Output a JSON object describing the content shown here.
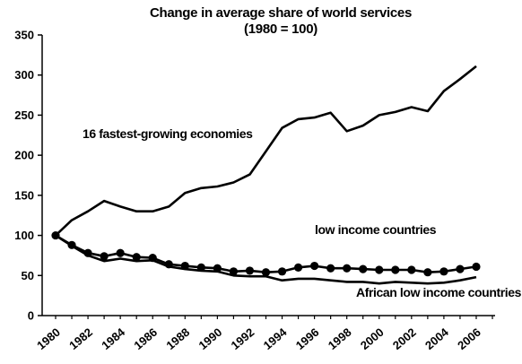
{
  "chart_data": {
    "type": "line",
    "title": "Change in average share of world services",
    "subtitle": "(1980 = 100)",
    "xlabel": "",
    "ylabel": "",
    "x_ticks": [
      "1980",
      "1982",
      "1984",
      "1986",
      "1988",
      "1990",
      "1992",
      "1994",
      "1996",
      "1998",
      "2000",
      "2002",
      "2004",
      "2006"
    ],
    "y_ticks": [
      0,
      50,
      100,
      150,
      200,
      250,
      300,
      350
    ],
    "xlim": [
      1980,
      2007
    ],
    "ylim": [
      0,
      350
    ],
    "grid": false,
    "legend": "none",
    "x": [
      1980,
      1981,
      1982,
      1983,
      1984,
      1985,
      1986,
      1987,
      1988,
      1989,
      1990,
      1991,
      1992,
      1993,
      1994,
      1995,
      1996,
      1997,
      1998,
      1999,
      2000,
      2001,
      2002,
      2003,
      2004,
      2005,
      2006
    ],
    "series": [
      {
        "name": "16 fastest-growing economies",
        "marker": "none",
        "values": [
          100,
          119,
          130,
          143,
          136,
          130,
          130,
          136,
          153,
          159,
          161,
          166,
          176,
          205,
          234,
          245,
          247,
          253,
          230,
          237,
          250,
          254,
          260,
          255,
          280,
          295,
          311
        ]
      },
      {
        "name": "low income countries",
        "marker": "circle",
        "values": [
          100,
          88,
          78,
          74,
          78,
          73,
          72,
          64,
          62,
          60,
          59,
          55,
          56,
          54,
          55,
          60,
          62,
          59,
          59,
          58,
          57,
          57,
          57,
          54,
          55,
          58,
          61
        ]
      },
      {
        "name": "African low income countries",
        "marker": "none",
        "values": [
          100,
          87,
          75,
          68,
          71,
          68,
          69,
          61,
          58,
          56,
          55,
          50,
          49,
          49,
          44,
          46,
          46,
          44,
          42,
          42,
          40,
          42,
          41,
          40,
          41,
          44,
          48
        ]
      }
    ],
    "annotations": [
      {
        "text": "16 fastest-growing economies",
        "series": 0
      },
      {
        "text": "low income countries",
        "series": 1
      },
      {
        "text": "African low income countries",
        "series": 2
      }
    ]
  }
}
